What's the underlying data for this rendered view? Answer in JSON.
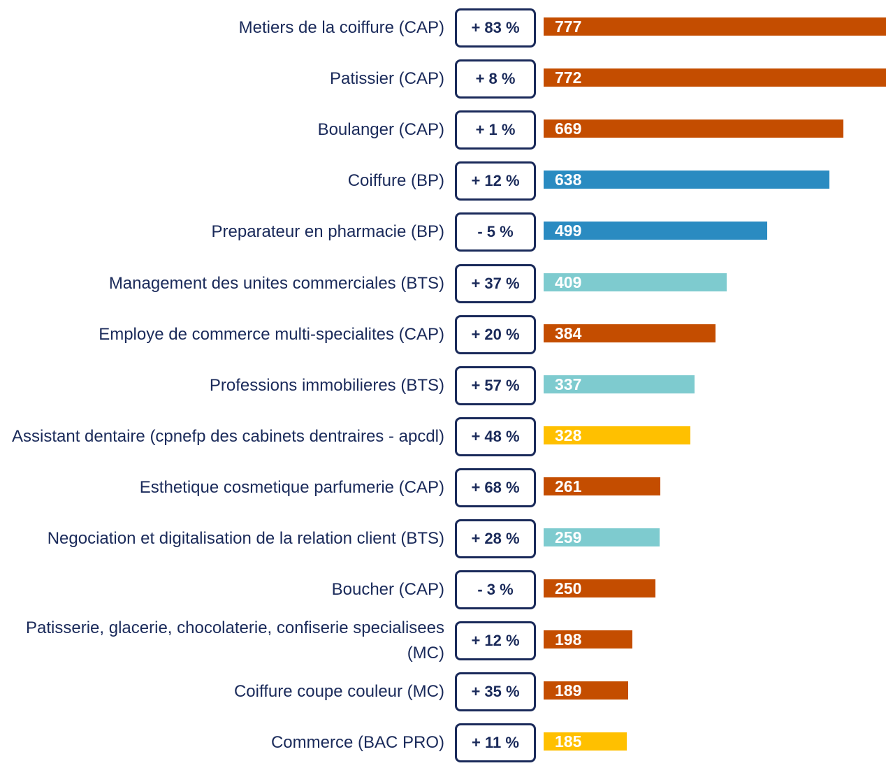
{
  "chart_data": {
    "type": "bar",
    "categories": [
      "Metiers de la coiffure (CAP)",
      "Patissier (CAP)",
      "Boulanger (CAP)",
      "Coiffure (BP)",
      "Preparateur en pharmacie (BP)",
      "Management des unites commerciales (BTS)",
      "Employe de commerce multi-specialites (CAP)",
      "Professions immobilieres (BTS)",
      "Assistant dentaire (cpnefp des cabinets dentraires - apcdl)",
      "Esthetique cosmetique parfumerie (CAP)",
      "Negociation et digitalisation de la relation client (BTS)",
      "Boucher (CAP)",
      "Patisserie, glacerie, chocolaterie, confiserie specialisees (MC)",
      "Coiffure coupe couleur (MC)",
      "Commerce (BAC PRO)"
    ],
    "values": [
      777,
      772,
      669,
      638,
      499,
      409,
      384,
      337,
      328,
      261,
      259,
      250,
      198,
      189,
      185
    ],
    "colors": [
      "#c44d00",
      "#c44d00",
      "#c44d00",
      "#2a8bc1",
      "#2a8bc1",
      "#7ecbcf",
      "#c44d00",
      "#7ecbcf",
      "#ffc000",
      "#c44d00",
      "#7ecbcf",
      "#c44d00",
      "#c44d00",
      "#c44d00",
      "#ffc000"
    ],
    "changes": [
      83,
      8,
      1,
      12,
      -5,
      37,
      20,
      57,
      48,
      68,
      28,
      -3,
      12,
      35,
      11
    ],
    "change_labels": [
      "+ 83 %",
      "+ 8 %",
      "+ 1 %",
      "+ 12 %",
      "- 5 %",
      "+ 37 %",
      "+ 20 %",
      "+ 57 %",
      "+ 48 %",
      "+ 68 %",
      "+ 28 %",
      "- 3 %",
      "+ 12 %",
      "+ 35 %",
      "+ 11 %"
    ]
  }
}
